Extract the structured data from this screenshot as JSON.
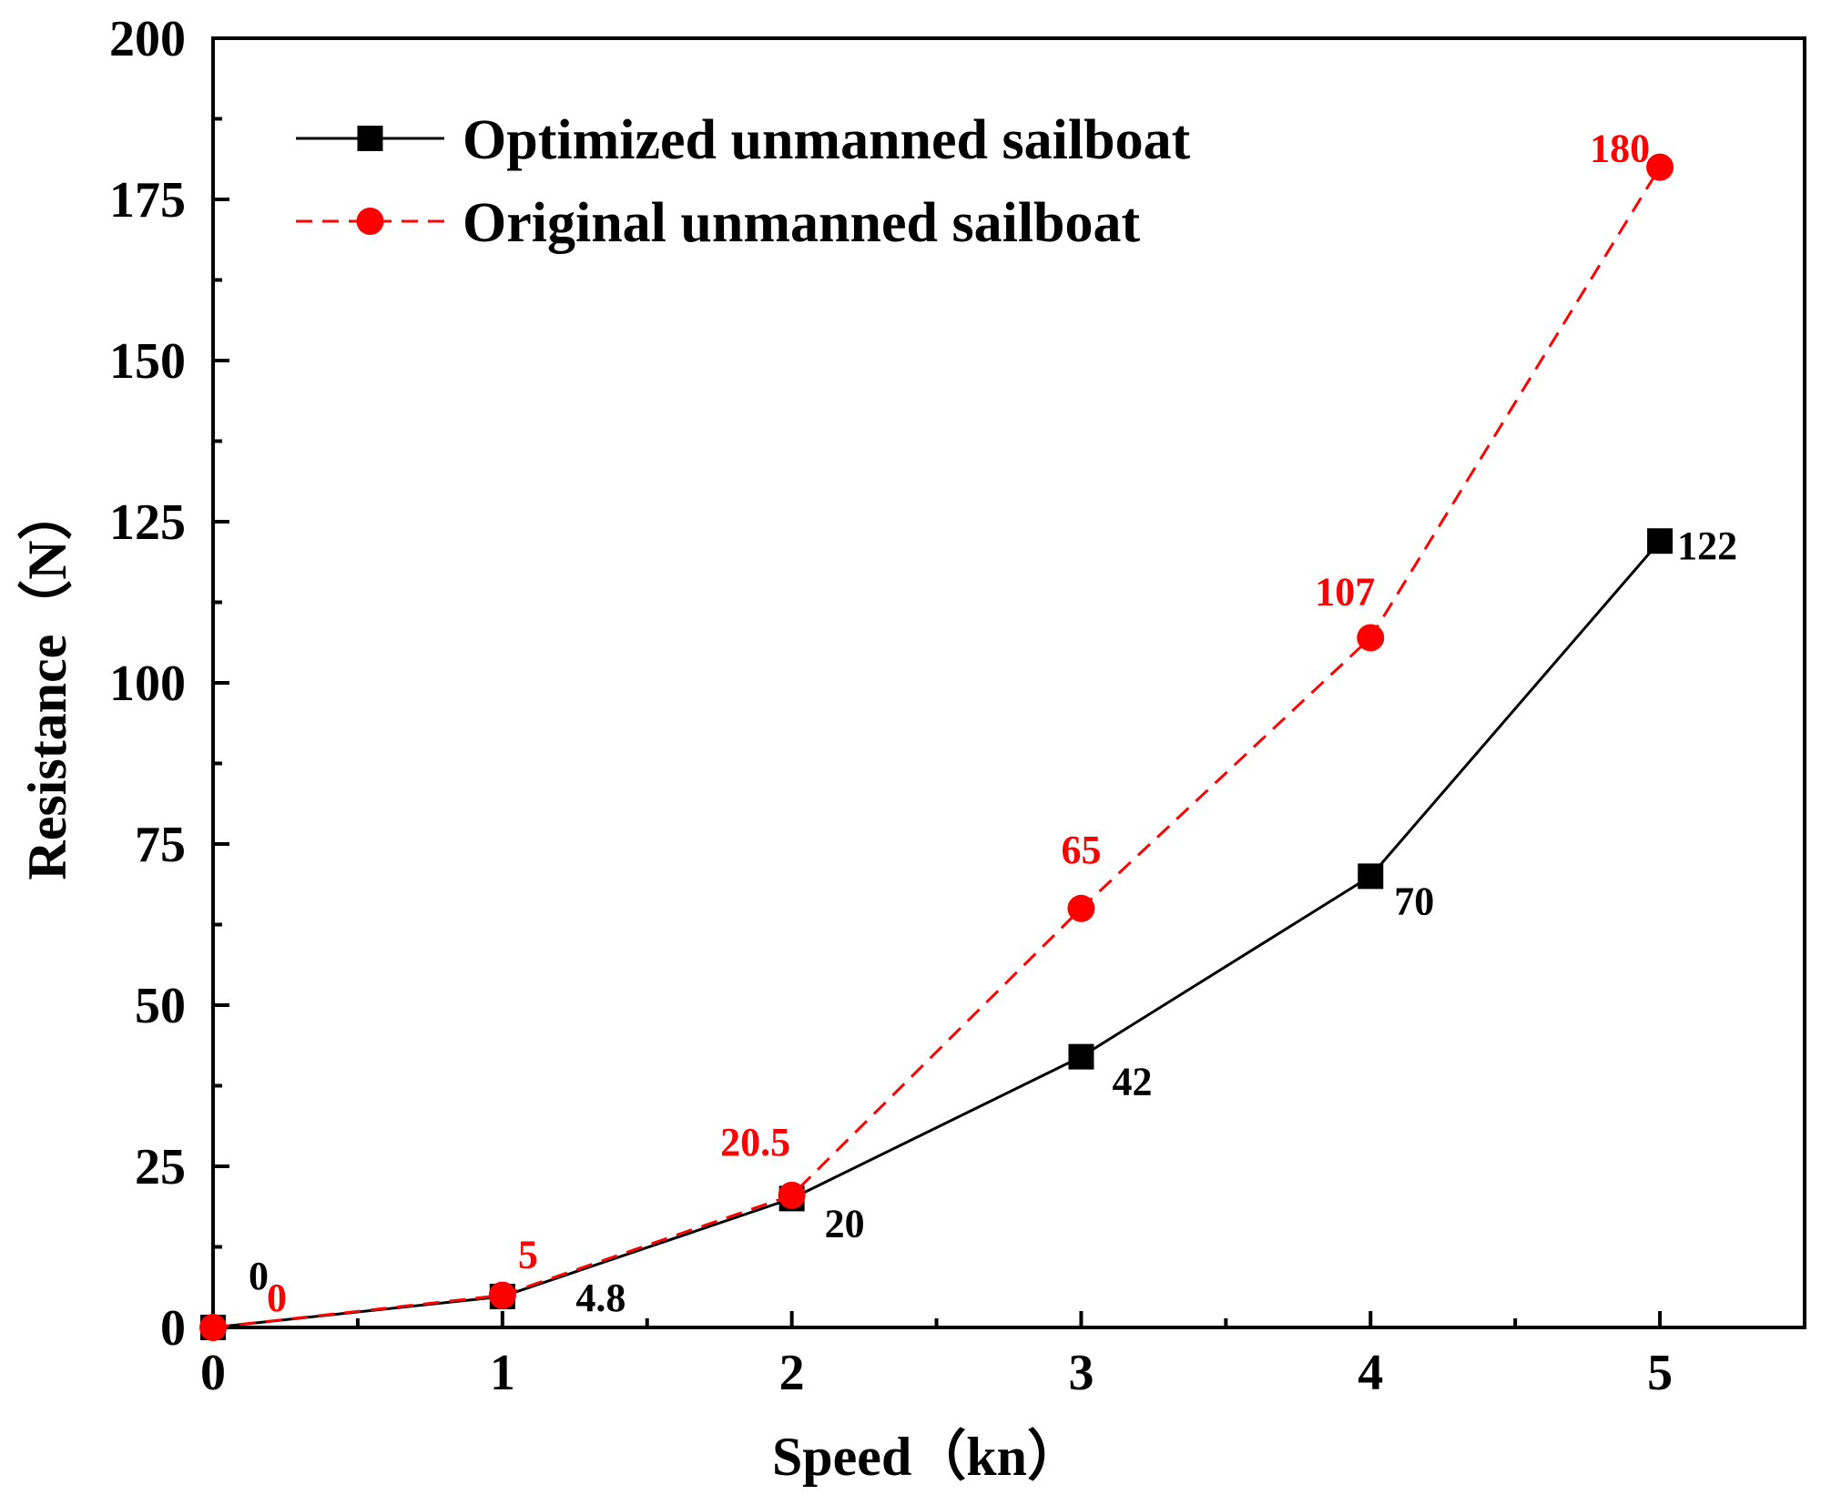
{
  "chart_data": {
    "type": "line",
    "xlabel": "Speed（kn）",
    "ylabel": "Resistance（N）",
    "xlim": [
      0,
      5.5
    ],
    "ylim": [
      0,
      200
    ],
    "xticks": [
      0,
      1,
      2,
      3,
      4,
      5
    ],
    "yticks": [
      0,
      25,
      50,
      75,
      100,
      125,
      150,
      175,
      200
    ],
    "x": [
      0,
      1,
      2,
      3,
      4,
      5
    ],
    "series": [
      {
        "name": "Optimized unmanned sailboat",
        "values": [
          0,
          4.8,
          20,
          42,
          70,
          122
        ],
        "labels": [
          "0",
          "4.8",
          "20",
          "42",
          "70",
          "122"
        ],
        "color": "#000000",
        "line": "solid",
        "marker": "square"
      },
      {
        "name": "Original unmanned sailboat",
        "values": [
          0,
          5,
          20.5,
          65,
          107,
          180
        ],
        "labels": [
          "0",
          "5",
          "20.5",
          "65",
          "107",
          "180"
        ],
        "color": "#ff0000",
        "line": "dashed",
        "marker": "circle"
      }
    ],
    "legend": "top-left",
    "grid": false
  }
}
